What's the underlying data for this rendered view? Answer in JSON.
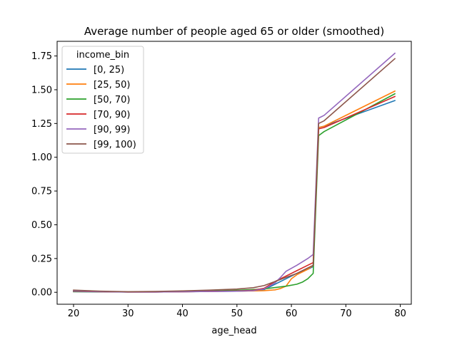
{
  "chart_data": {
    "type": "line",
    "title": "Average number of people aged 65 or older (smoothed)",
    "xlabel": "age_head",
    "ylabel": "",
    "xlim": [
      16.985,
      82.015
    ],
    "ylim": [
      -0.0885,
      1.8585
    ],
    "xticks": [
      20,
      30,
      40,
      50,
      60,
      70,
      80
    ],
    "xtick_labels": [
      "20",
      "30",
      "40",
      "50",
      "60",
      "70",
      "80"
    ],
    "yticks": [
      0.0,
      0.25,
      0.5,
      0.75,
      1.0,
      1.25,
      1.5,
      1.75
    ],
    "ytick_labels": [
      "0.00",
      "0.25",
      "0.50",
      "0.75",
      "1.00",
      "1.25",
      "1.50",
      "1.75"
    ],
    "grid": false,
    "legend": {
      "title": "income_bin",
      "location": "upper-left"
    },
    "series": [
      {
        "name": "[0, 25)",
        "color": "#1f77b4",
        "x": [
          20,
          25,
          30,
          35,
          40,
          45,
          50,
          53,
          55,
          57,
          59,
          61,
          63,
          64,
          65,
          66,
          79
        ],
        "y": [
          0.005,
          0.003,
          0.002,
          0.002,
          0.004,
          0.006,
          0.008,
          0.012,
          0.02,
          0.06,
          0.1,
          0.14,
          0.17,
          0.19,
          1.22,
          1.23,
          1.42
        ]
      },
      {
        "name": "[25, 50)",
        "color": "#ff7f0e",
        "x": [
          20,
          25,
          30,
          35,
          40,
          45,
          50,
          53,
          55,
          57,
          58,
          59,
          60,
          61,
          63,
          64,
          65,
          66,
          79
        ],
        "y": [
          0.012,
          0.006,
          0.002,
          0.002,
          0.004,
          0.007,
          0.009,
          0.01,
          0.012,
          0.018,
          0.028,
          0.045,
          0.1,
          0.13,
          0.17,
          0.2,
          1.22,
          1.23,
          1.49
        ]
      },
      {
        "name": "[50, 70)",
        "color": "#2ca02c",
        "x": [
          20,
          25,
          30,
          35,
          40,
          45,
          50,
          53,
          55,
          57,
          59,
          61,
          62,
          63,
          64,
          65,
          66,
          79
        ],
        "y": [
          0.005,
          0.004,
          0.003,
          0.004,
          0.006,
          0.01,
          0.015,
          0.02,
          0.025,
          0.035,
          0.045,
          0.06,
          0.075,
          0.1,
          0.14,
          1.16,
          1.19,
          1.47
        ]
      },
      {
        "name": "[70, 90)",
        "color": "#d62728",
        "x": [
          20,
          25,
          30,
          35,
          40,
          45,
          50,
          53,
          55,
          57,
          59,
          61,
          63,
          64,
          65,
          66,
          79
        ],
        "y": [
          0.008,
          0.004,
          0.002,
          0.002,
          0.004,
          0.007,
          0.01,
          0.015,
          0.03,
          0.08,
          0.12,
          0.16,
          0.2,
          0.22,
          1.21,
          1.22,
          1.45
        ]
      },
      {
        "name": "[90, 99)",
        "color": "#9467bd",
        "x": [
          20,
          25,
          30,
          35,
          40,
          45,
          50,
          53,
          55,
          57,
          58,
          59,
          61,
          63,
          64,
          65,
          66,
          79
        ],
        "y": [
          0.01,
          0.005,
          0.002,
          0.002,
          0.004,
          0.006,
          0.008,
          0.012,
          0.025,
          0.07,
          0.11,
          0.155,
          0.2,
          0.25,
          0.28,
          1.29,
          1.31,
          1.77
        ]
      },
      {
        "name": "[99, 100)",
        "color": "#8c564b",
        "x": [
          20,
          25,
          30,
          35,
          40,
          45,
          50,
          53,
          55,
          57,
          59,
          61,
          63,
          64,
          65,
          66,
          79
        ],
        "y": [
          0.016,
          0.008,
          0.004,
          0.006,
          0.01,
          0.016,
          0.024,
          0.034,
          0.05,
          0.08,
          0.11,
          0.14,
          0.18,
          0.2,
          1.25,
          1.27,
          1.73
        ]
      }
    ]
  }
}
